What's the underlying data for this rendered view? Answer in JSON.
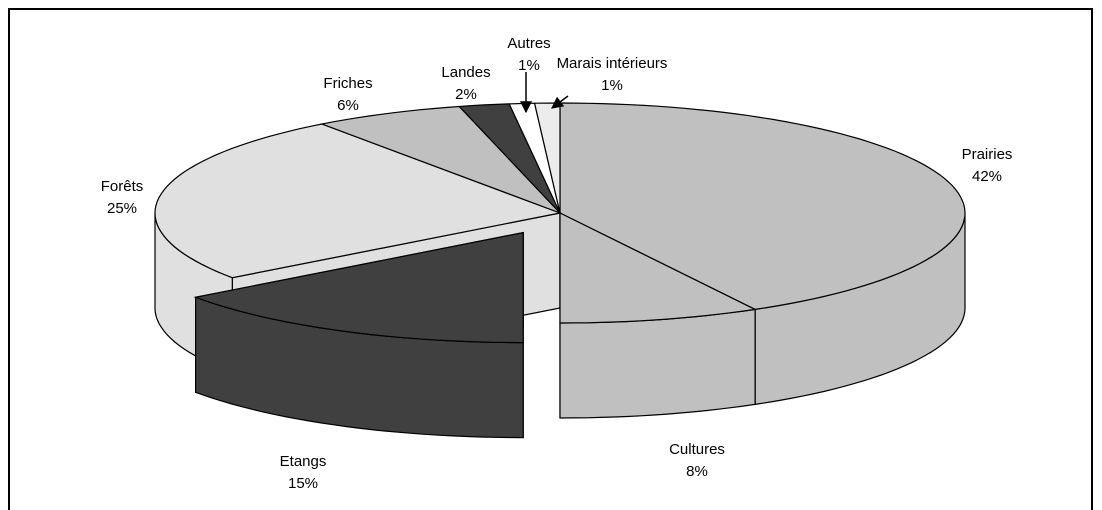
{
  "chart_data": {
    "type": "pie3d",
    "categories": [
      "Prairies",
      "Cultures",
      "Etangs",
      "Forêts",
      "Friches",
      "Landes",
      "Autres",
      "Marais intérieurs"
    ],
    "values": [
      42,
      8,
      15,
      25,
      6,
      2,
      1,
      1
    ],
    "value_labels": [
      "42%",
      "8%",
      "15%",
      "25%",
      "6%",
      "2%",
      "1%",
      "1%"
    ],
    "colors": [
      "#c0c0c0",
      "#c0c0c0",
      "#404040",
      "#e0e0e0",
      "#c0c0c0",
      "#404040",
      "#ffffff",
      "#ececec"
    ],
    "exploded": [
      2
    ]
  }
}
